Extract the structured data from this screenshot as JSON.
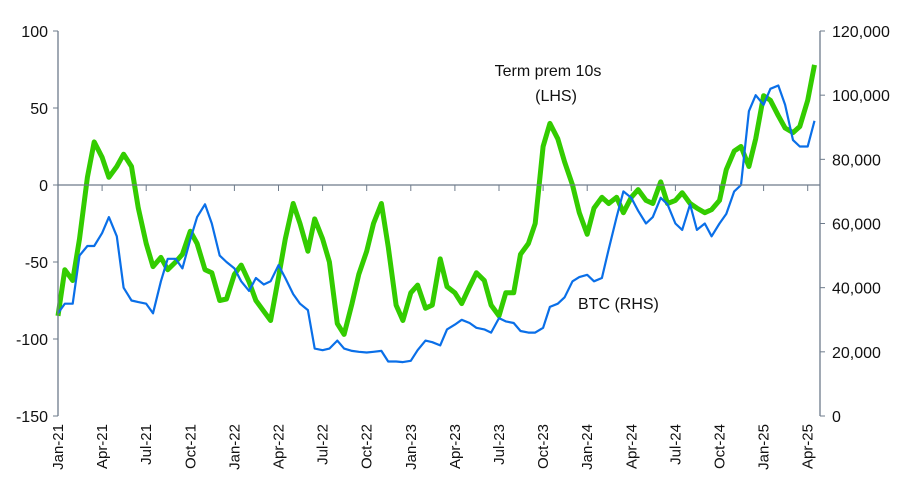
{
  "chart_data": {
    "type": "line",
    "title": "",
    "xlabel": "",
    "ylabel_left": "",
    "ylabel_right": "",
    "grid": false,
    "ylim_left": [
      -150,
      100
    ],
    "yticks_left": [
      "100",
      "50",
      "0",
      "-50",
      "-100",
      "-150"
    ],
    "yticks_left_values": [
      100,
      50,
      0,
      -50,
      -100,
      -150
    ],
    "ylim_right": [
      0,
      120000
    ],
    "yticks_right": [
      "120,000",
      "100,000",
      "80,000",
      "60,000",
      "40,000",
      "20,000",
      "0"
    ],
    "yticks_right_values": [
      120000,
      100000,
      80000,
      60000,
      40000,
      20000,
      0
    ],
    "xlim": [
      "2021-01-01",
      "2025-04-15"
    ],
    "xticks": [
      "Jan-21",
      "Apr-21",
      "Jul-21",
      "Oct-21",
      "Jan-22",
      "Apr-22",
      "Jul-22",
      "Oct-22",
      "Jan-23",
      "Apr-23",
      "Jul-23",
      "Oct-23",
      "Jan-24",
      "Apr-24",
      "Jul-24",
      "Oct-24",
      "Jan-25",
      "Apr-25"
    ],
    "xtick_dates": [
      "2021-01-01",
      "2021-04-01",
      "2021-07-01",
      "2021-10-01",
      "2022-01-01",
      "2022-04-01",
      "2022-07-01",
      "2022-10-01",
      "2023-01-01",
      "2023-04-01",
      "2023-07-01",
      "2023-10-01",
      "2024-01-01",
      "2024-04-01",
      "2024-07-01",
      "2024-10-01",
      "2025-01-01",
      "2025-04-01"
    ],
    "x": [
      "2021-01-01",
      "2021-01-15",
      "2021-02-01",
      "2021-02-15",
      "2021-03-01",
      "2021-03-15",
      "2021-04-01",
      "2021-04-15",
      "2021-05-01",
      "2021-05-15",
      "2021-06-01",
      "2021-06-15",
      "2021-07-01",
      "2021-07-15",
      "2021-08-01",
      "2021-08-15",
      "2021-09-01",
      "2021-09-15",
      "2021-10-01",
      "2021-10-15",
      "2021-11-01",
      "2021-11-15",
      "2021-12-01",
      "2021-12-15",
      "2022-01-01",
      "2022-01-15",
      "2022-02-01",
      "2022-02-15",
      "2022-03-01",
      "2022-03-15",
      "2022-04-01",
      "2022-04-15",
      "2022-05-01",
      "2022-05-15",
      "2022-06-01",
      "2022-06-15",
      "2022-07-01",
      "2022-07-15",
      "2022-08-01",
      "2022-08-15",
      "2022-09-01",
      "2022-09-15",
      "2022-10-01",
      "2022-10-15",
      "2022-11-01",
      "2022-11-15",
      "2022-12-01",
      "2022-12-15",
      "2023-01-01",
      "2023-01-15",
      "2023-02-01",
      "2023-02-15",
      "2023-03-01",
      "2023-03-15",
      "2023-04-01",
      "2023-04-15",
      "2023-05-01",
      "2023-05-15",
      "2023-06-01",
      "2023-06-15",
      "2023-07-01",
      "2023-07-15",
      "2023-08-01",
      "2023-08-15",
      "2023-09-01",
      "2023-09-15",
      "2023-10-01",
      "2023-10-15",
      "2023-11-01",
      "2023-11-15",
      "2023-12-01",
      "2023-12-15",
      "2024-01-01",
      "2024-01-15",
      "2024-02-01",
      "2024-02-15",
      "2024-03-01",
      "2024-03-15",
      "2024-04-01",
      "2024-04-15",
      "2024-05-01",
      "2024-05-15",
      "2024-06-01",
      "2024-06-15",
      "2024-07-01",
      "2024-07-15",
      "2024-08-01",
      "2024-08-15",
      "2024-09-01",
      "2024-09-15",
      "2024-10-01",
      "2024-10-15",
      "2024-11-01",
      "2024-11-15",
      "2024-12-01",
      "2024-12-15",
      "2025-01-01",
      "2025-01-15",
      "2025-02-01",
      "2025-02-15",
      "2025-03-01",
      "2025-03-15",
      "2025-04-01",
      "2025-04-15"
    ],
    "series": [
      {
        "name": "Term prem 10s (LHS)",
        "axis": "left",
        "color": "#33cc00",
        "values": [
          -85,
          -55,
          -62,
          -35,
          5,
          28,
          18,
          5,
          12,
          20,
          12,
          -15,
          -38,
          -53,
          -47,
          -55,
          -50,
          -45,
          -30,
          -38,
          -55,
          -57,
          -75,
          -74,
          -58,
          -52,
          -63,
          -75,
          -82,
          -88,
          -60,
          -35,
          -12,
          -25,
          -43,
          -22,
          -35,
          -50,
          -90,
          -97,
          -77,
          -58,
          -43,
          -25,
          -12,
          -40,
          -78,
          -88,
          -70,
          -65,
          -80,
          -78,
          -48,
          -66,
          -70,
          -77,
          -66,
          -57,
          -62,
          -78,
          -85,
          -70,
          -70,
          -45,
          -38,
          -25,
          25,
          40,
          30,
          15,
          0,
          -18,
          -32,
          -15,
          -8,
          -12,
          -8,
          -18,
          -8,
          -3,
          -10,
          -12,
          2,
          -12,
          -10,
          -5,
          -12,
          -15,
          -18,
          -16,
          -10,
          10,
          22,
          25,
          12,
          30,
          58,
          55,
          45,
          37,
          34,
          38,
          55,
          78
        ]
      },
      {
        "name": "BTC (RHS)",
        "axis": "right",
        "color": "#0a6fe8",
        "values": [
          32000,
          35000,
          35000,
          50000,
          53000,
          53000,
          57000,
          62000,
          56000,
          40000,
          36000,
          35500,
          35000,
          32000,
          42000,
          49000,
          49000,
          46000,
          55000,
          62000,
          66000,
          60000,
          50000,
          48000,
          46000,
          42000,
          39000,
          43000,
          41000,
          42000,
          47000,
          43000,
          38000,
          35000,
          33000,
          21000,
          20500,
          21000,
          23500,
          21000,
          20300,
          20000,
          19800,
          20000,
          20300,
          17000,
          17000,
          16800,
          17200,
          20500,
          23500,
          23000,
          22000,
          27000,
          28500,
          30000,
          29000,
          27500,
          27000,
          26000,
          30500,
          29500,
          29000,
          26500,
          26000,
          26000,
          27500,
          34000,
          35000,
          37000,
          42000,
          43300,
          44000,
          42000,
          43000,
          52000,
          62000,
          70000,
          68000,
          64000,
          60000,
          62000,
          68000,
          66000,
          60000,
          58000,
          66000,
          58000,
          60000,
          56000,
          60000,
          63000,
          70000,
          72000,
          95000,
          100000,
          97000,
          102000,
          103000,
          97000,
          86000,
          84000,
          84000,
          92000
        ]
      }
    ],
    "annotations": {
      "term_prem_line1": "Term prem 10s",
      "term_prem_line2": "(LHS)",
      "btc": "BTC (RHS)"
    }
  }
}
